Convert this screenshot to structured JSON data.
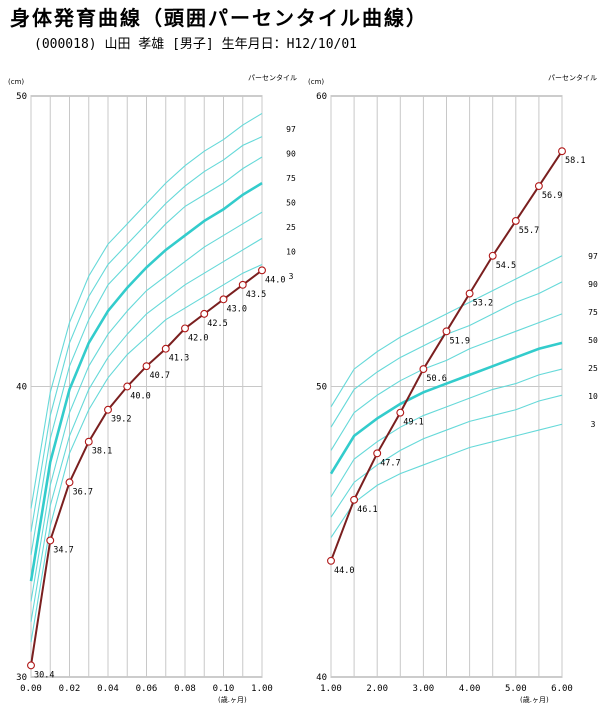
{
  "header": {
    "title": "身体発育曲線（頭囲パーセンタイル曲線）",
    "patient_line": "(000018) 山田  孝雄  [男子] 生年月日：H12/10/01"
  },
  "colors": {
    "percentile_line": "#66d9d9",
    "median_line": "#33cccc",
    "data_line": "#7a1f1f",
    "marker_stroke": "#b01818",
    "grid": "#c8c8c8"
  },
  "chart_data": [
    {
      "type": "line",
      "unit_label": "(cm)",
      "percentile_title": "パーセンタイル",
      "xlabel": "(歳.ヶ月)",
      "xlim": [
        0,
        1.0
      ],
      "ylim": [
        30,
        50
      ],
      "x_ticks": [
        "0.00",
        "0.02",
        "0.04",
        "0.06",
        "0.08",
        "0.10",
        "1.00"
      ],
      "y_ticks": [
        "30",
        "40",
        "50"
      ],
      "grid": true,
      "percentile_labels": [
        "97",
        "90",
        "75",
        "50",
        "25",
        "10",
        "3"
      ],
      "percentile_x": [
        0,
        0.01,
        0.02,
        0.03,
        0.04,
        0.05,
        0.06,
        0.07,
        0.08,
        0.09,
        0.1,
        0.11,
        0.12
      ],
      "percentiles": [
        {
          "name": "97",
          "values": [
            35.8,
            39.8,
            42.2,
            43.8,
            44.9,
            45.6,
            46.3,
            47.0,
            47.6,
            48.1,
            48.5,
            49.0,
            49.4
          ]
        },
        {
          "name": "90",
          "values": [
            35.0,
            39.0,
            41.5,
            43.1,
            44.2,
            44.9,
            45.6,
            46.3,
            46.9,
            47.4,
            47.8,
            48.3,
            48.6
          ]
        },
        {
          "name": "75",
          "values": [
            34.2,
            38.2,
            40.7,
            42.3,
            43.5,
            44.2,
            44.9,
            45.6,
            46.2,
            46.6,
            47.0,
            47.5,
            47.9
          ]
        },
        {
          "name": "50",
          "values": [
            33.3,
            37.4,
            39.9,
            41.5,
            42.6,
            43.4,
            44.1,
            44.7,
            45.2,
            45.7,
            46.1,
            46.6,
            47.0
          ]
        },
        {
          "name": "25",
          "values": [
            32.6,
            36.6,
            39.1,
            40.7,
            41.8,
            42.6,
            43.3,
            43.8,
            44.3,
            44.8,
            45.2,
            45.6,
            46.0
          ]
        },
        {
          "name": "10",
          "values": [
            31.9,
            35.9,
            38.3,
            39.9,
            41.0,
            41.8,
            42.5,
            43.0,
            43.5,
            43.9,
            44.3,
            44.7,
            45.1
          ]
        },
        {
          "name": "3",
          "values": [
            31.2,
            35.2,
            37.7,
            39.2,
            40.3,
            41.1,
            41.7,
            42.3,
            42.7,
            43.1,
            43.5,
            43.9,
            44.2
          ]
        }
      ],
      "series": [
        {
          "x": [
            0,
            0.01,
            0.02,
            0.03,
            0.04,
            0.05,
            0.06,
            0.07,
            0.08,
            0.09,
            0.1,
            0.11,
            0.12
          ],
          "values": [
            30.4,
            34.7,
            36.7,
            38.1,
            39.2,
            40.0,
            40.7,
            41.3,
            42.0,
            42.5,
            43.0,
            43.5,
            44.0
          ],
          "labels": [
            "30.4",
            "34.7",
            "36.7",
            "38.1",
            "39.2",
            "40.0",
            "40.7",
            "41.3",
            "42.0",
            "42.5",
            "43.0",
            "43.5",
            "44.0"
          ]
        }
      ]
    },
    {
      "type": "line",
      "unit_label": "(cm)",
      "percentile_title": "パーセンタイル",
      "xlabel": "(歳.ヶ月)",
      "xlim": [
        1,
        6
      ],
      "ylim": [
        40,
        60
      ],
      "x_ticks": [
        "1.00",
        "2.00",
        "3.00",
        "4.00",
        "5.00",
        "6.00"
      ],
      "y_ticks": [
        "40",
        "50",
        "60"
      ],
      "grid": true,
      "percentile_labels": [
        "97",
        "90",
        "75",
        "50",
        "25",
        "10",
        "3"
      ],
      "percentile_x": [
        1,
        1.5,
        2,
        2.5,
        3,
        3.5,
        4,
        4.5,
        5,
        5.5,
        6
      ],
      "percentiles": [
        {
          "name": "97",
          "values": [
            49.3,
            50.6,
            51.2,
            51.7,
            52.1,
            52.5,
            52.9,
            53.3,
            53.7,
            54.1,
            54.5
          ]
        },
        {
          "name": "90",
          "values": [
            48.6,
            49.9,
            50.5,
            51.0,
            51.4,
            51.8,
            52.1,
            52.5,
            52.9,
            53.2,
            53.6
          ]
        },
        {
          "name": "75",
          "values": [
            47.8,
            49.1,
            49.7,
            50.2,
            50.6,
            50.9,
            51.3,
            51.6,
            51.9,
            52.2,
            52.5
          ]
        },
        {
          "name": "50",
          "values": [
            47.0,
            48.3,
            48.9,
            49.4,
            49.8,
            50.1,
            50.4,
            50.7,
            51.0,
            51.3,
            51.5
          ]
        },
        {
          "name": "25",
          "values": [
            46.2,
            47.5,
            48.1,
            48.6,
            49.0,
            49.3,
            49.6,
            49.9,
            50.1,
            50.4,
            50.6
          ]
        },
        {
          "name": "10",
          "values": [
            45.5,
            46.7,
            47.3,
            47.8,
            48.2,
            48.5,
            48.8,
            49.0,
            49.2,
            49.5,
            49.7
          ]
        },
        {
          "name": "3",
          "values": [
            44.8,
            46.0,
            46.6,
            47.0,
            47.3,
            47.6,
            47.9,
            48.1,
            48.3,
            48.5,
            48.7
          ]
        }
      ],
      "series": [
        {
          "x": [
            1,
            1.5,
            2,
            2.5,
            3,
            3.5,
            4,
            4.5,
            5,
            5.5,
            6
          ],
          "values": [
            44.0,
            46.1,
            47.7,
            49.1,
            50.6,
            51.9,
            53.2,
            54.5,
            55.7,
            56.9,
            58.1
          ],
          "labels": [
            "44.0",
            "46.1",
            "47.7",
            "49.1",
            "50.6",
            "51.9",
            "53.2",
            "54.5",
            "55.7",
            "56.9",
            "58.1"
          ]
        }
      ]
    }
  ]
}
